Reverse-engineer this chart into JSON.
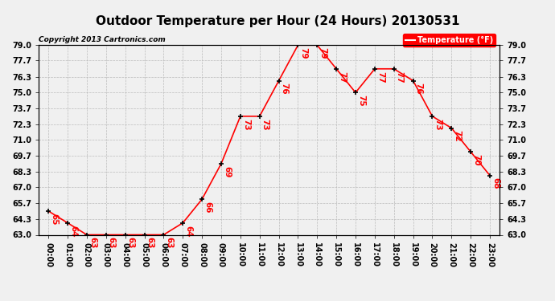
{
  "hours": [
    "00:00",
    "01:00",
    "02:00",
    "03:00",
    "04:00",
    "05:00",
    "06:00",
    "07:00",
    "08:00",
    "09:00",
    "10:00",
    "11:00",
    "12:00",
    "13:00",
    "14:00",
    "15:00",
    "16:00",
    "17:00",
    "18:00",
    "19:00",
    "20:00",
    "21:00",
    "22:00",
    "23:00"
  ],
  "temps": [
    65,
    64,
    63,
    63,
    63,
    63,
    63,
    64,
    66,
    69,
    73,
    73,
    76,
    79,
    79,
    77,
    75,
    77,
    77,
    76,
    73,
    72,
    70,
    68
  ],
  "title": "Outdoor Temperature per Hour (24 Hours) 20130531",
  "copyright": "Copyright 2013 Cartronics.com",
  "legend_label": "Temperature (°F)",
  "line_color": "red",
  "marker_color": "black",
  "ylim_min": 63.0,
  "ylim_max": 79.0,
  "yticks": [
    63.0,
    64.3,
    65.7,
    67.0,
    68.3,
    69.7,
    71.0,
    72.3,
    73.7,
    75.0,
    76.3,
    77.7,
    79.0
  ],
  "background_color": "#f0f0f0",
  "grid_color": "#bbbbbb",
  "title_fontsize": 11,
  "copyright_fontsize": 6.5,
  "tick_fontsize": 7,
  "annotation_fontsize": 7.5
}
